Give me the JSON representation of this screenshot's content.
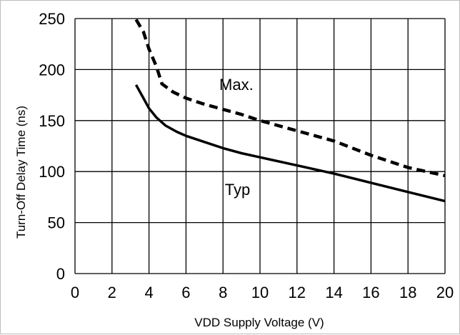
{
  "chart_data": {
    "type": "line",
    "title": "",
    "xlabel": "VDD Supply Voltage (V)",
    "ylabel": "Turn-Off Delay Time (ns)",
    "xlim": [
      0,
      20
    ],
    "ylim": [
      0,
      250
    ],
    "x_ticks": [
      "0",
      "2",
      "4",
      "6",
      "8",
      "10",
      "12",
      "14",
      "16",
      "18",
      "20"
    ],
    "y_ticks": [
      "0",
      "50",
      "100",
      "150",
      "200",
      "250"
    ],
    "x_tick_values": [
      0,
      2,
      4,
      6,
      8,
      10,
      12,
      14,
      16,
      18,
      20
    ],
    "y_tick_values": [
      0,
      50,
      100,
      150,
      200,
      250
    ],
    "grid": true,
    "series": [
      {
        "name": "Max.",
        "style": "dashed",
        "color": "#000000",
        "x": [
          3.3,
          3.7,
          4.0,
          4.4,
          4.7,
          5.3,
          6.0,
          7.0,
          8.0,
          9.0,
          10.0,
          12.0,
          14.0,
          16.0,
          18.0,
          20.0
        ],
        "y": [
          249,
          237,
          220,
          203,
          186,
          178,
          172,
          166,
          161,
          156,
          150,
          140,
          130,
          116,
          104,
          96
        ]
      },
      {
        "name": "Typ",
        "style": "solid",
        "color": "#000000",
        "x": [
          3.3,
          3.7,
          4.0,
          4.4,
          4.9,
          5.5,
          6.0,
          7.0,
          8.0,
          9.0,
          10.0,
          12.0,
          14.0,
          16.0,
          18.0,
          20.0
        ],
        "y": [
          185,
          172,
          162,
          153,
          145,
          139,
          135,
          129,
          123,
          118,
          114,
          106,
          98,
          89,
          80,
          71
        ]
      }
    ],
    "annotations": [
      {
        "text": "Max.",
        "x": 7.8,
        "y": 180
      },
      {
        "text": "Typ",
        "x": 8.1,
        "y": 77
      }
    ]
  }
}
